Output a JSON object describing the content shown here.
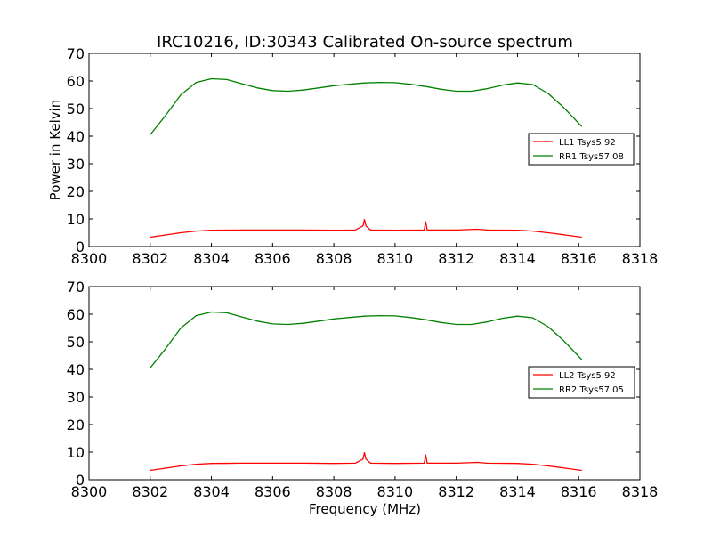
{
  "chart_data": [
    {
      "type": "line",
      "title": "IRC10216, ID:30343 Calibrated On-source spectrum",
      "xlabel": "",
      "ylabel": "Power in Kelvin",
      "xlim": [
        8300,
        8318
      ],
      "ylim": [
        0,
        70
      ],
      "xticks": [
        8300,
        8302,
        8304,
        8306,
        8308,
        8310,
        8312,
        8314,
        8316,
        8318
      ],
      "yticks": [
        0,
        10,
        20,
        30,
        40,
        50,
        60,
        70
      ],
      "grid": false,
      "legend_position": "center-right",
      "series": [
        {
          "name": "LL1 Tsys5.92",
          "color": "#ff0000",
          "x": [
            8302,
            8302.5,
            8303,
            8303.5,
            8304,
            8305,
            8306,
            8307,
            8308,
            8308.7,
            8308.95,
            8309.0,
            8309.05,
            8309.2,
            8310,
            8310.95,
            8311.0,
            8311.05,
            8312,
            8312.7,
            8313,
            8314,
            8314.5,
            8315,
            8315.5,
            8316.1
          ],
          "y": [
            3.4,
            4.2,
            5.0,
            5.6,
            5.9,
            6.0,
            6.0,
            6.0,
            5.9,
            6.0,
            7.5,
            9.8,
            7.5,
            6.0,
            5.9,
            6.0,
            9.0,
            6.0,
            6.0,
            6.3,
            6.0,
            5.9,
            5.6,
            5.0,
            4.3,
            3.4
          ]
        },
        {
          "name": "RR1 Tsys57.08",
          "color": "#008000",
          "x": [
            8302,
            8302.5,
            8303,
            8303.5,
            8304,
            8304.5,
            8305,
            8305.5,
            8306,
            8306.5,
            8307,
            8307.5,
            8308,
            8308.5,
            8309,
            8309.5,
            8310,
            8310.5,
            8311,
            8311.5,
            8312,
            8312.5,
            8313,
            8313.5,
            8314,
            8314.5,
            8315,
            8315.5,
            8316.1
          ],
          "y": [
            40.5,
            47.5,
            55.0,
            59.5,
            60.8,
            60.5,
            59.0,
            57.5,
            56.5,
            56.3,
            56.7,
            57.5,
            58.3,
            58.8,
            59.3,
            59.5,
            59.4,
            58.8,
            58.0,
            57.0,
            56.3,
            56.3,
            57.2,
            58.5,
            59.3,
            58.7,
            55.5,
            50.5,
            43.5
          ]
        }
      ]
    },
    {
      "type": "line",
      "title": "",
      "xlabel": "Frequency (MHz)",
      "ylabel": "",
      "xlim": [
        8300,
        8318
      ],
      "ylim": [
        0,
        70
      ],
      "xticks": [
        8300,
        8302,
        8304,
        8306,
        8308,
        8310,
        8312,
        8314,
        8316,
        8318
      ],
      "yticks": [
        0,
        10,
        20,
        30,
        40,
        50,
        60,
        70
      ],
      "grid": false,
      "legend_position": "center-right",
      "series": [
        {
          "name": "LL2 Tsys5.92",
          "color": "#ff0000",
          "x": [
            8302,
            8302.5,
            8303,
            8303.5,
            8304,
            8305,
            8306,
            8307,
            8308,
            8308.7,
            8308.95,
            8309.0,
            8309.05,
            8309.2,
            8310,
            8310.95,
            8311.0,
            8311.05,
            8312,
            8312.7,
            8313,
            8314,
            8314.5,
            8315,
            8315.5,
            8316.1
          ],
          "y": [
            3.4,
            4.2,
            5.0,
            5.6,
            5.9,
            6.0,
            6.0,
            6.0,
            5.9,
            6.0,
            7.5,
            9.8,
            7.5,
            6.0,
            5.9,
            6.0,
            9.0,
            6.0,
            6.0,
            6.3,
            6.0,
            5.9,
            5.6,
            5.0,
            4.3,
            3.4
          ]
        },
        {
          "name": "RR2 Tsys57.05",
          "color": "#008000",
          "x": [
            8302,
            8302.5,
            8303,
            8303.5,
            8304,
            8304.5,
            8305,
            8305.5,
            8306,
            8306.5,
            8307,
            8307.5,
            8308,
            8308.5,
            8309,
            8309.5,
            8310,
            8310.5,
            8311,
            8311.5,
            8312,
            8312.5,
            8313,
            8313.5,
            8314,
            8314.5,
            8315,
            8315.5,
            8316.1
          ],
          "y": [
            40.5,
            47.5,
            55.0,
            59.5,
            60.8,
            60.5,
            59.0,
            57.5,
            56.5,
            56.3,
            56.7,
            57.5,
            58.3,
            58.8,
            59.3,
            59.5,
            59.4,
            58.8,
            58.0,
            57.0,
            56.3,
            56.3,
            57.2,
            58.5,
            59.3,
            58.7,
            55.5,
            50.5,
            43.5
          ]
        }
      ]
    }
  ]
}
